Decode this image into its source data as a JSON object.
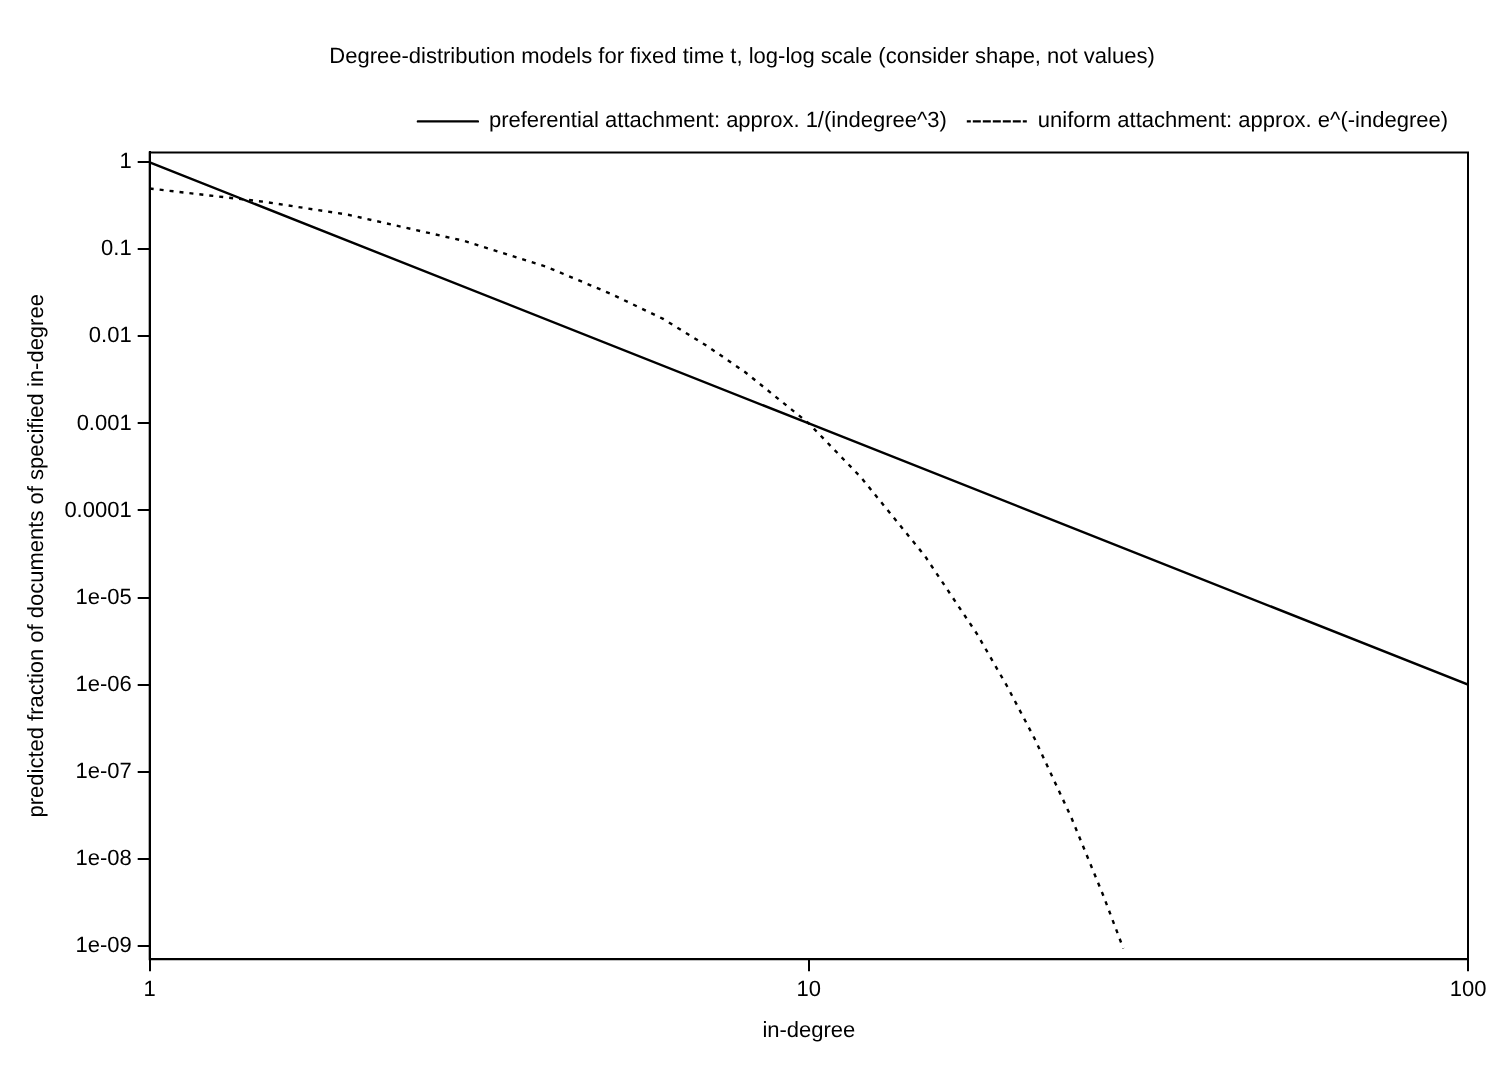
{
  "chart_data": {
    "type": "line",
    "title": "Degree-distribution models for fixed time t, log-log scale (consider shape, not values)",
    "xlabel": "in-degree",
    "ylabel": "predicted fraction of documents of specified in-degree",
    "log": "xy",
    "xlim": [
      1,
      100
    ],
    "xticks": [
      1,
      10,
      100
    ],
    "ylim": [
      7e-10,
      1.3
    ],
    "yticks": [
      1,
      0.1,
      0.01,
      0.001,
      0.0001,
      {
        "value": 1e-05,
        "label": "1e-05"
      },
      {
        "value": 1e-06,
        "label": "1e-06"
      },
      {
        "value": 1e-07,
        "label": "1e-07"
      },
      {
        "value": 1e-08,
        "label": "1e-08"
      },
      {
        "value": 1e-09,
        "label": "1e-09"
      }
    ],
    "grid": false,
    "legend": "top right",
    "marker": "none",
    "series": [
      {
        "name": "preferential attachment: approx. 1/(indegree^3)",
        "color": "#000000",
        "line_style": "solid",
        "x": [
          1,
          10,
          100
        ],
        "values": [
          1,
          0.001,
          1e-06
        ]
      },
      {
        "name": "uniform attachment: approx. e^(-indegree)",
        "color": "#000000",
        "line_style": "dotted",
        "x": [
          1,
          1.5,
          2,
          3,
          4,
          5,
          6,
          7,
          8,
          10,
          12,
          15,
          18,
          20,
          22,
          25,
          28,
          30
        ],
        "values": [
          0.5,
          0.35,
          0.25,
          0.125,
          0.063,
          0.031,
          0.016,
          0.0078,
          0.0039,
          0.001,
          0.00024,
          3e-05,
          3.8e-06,
          9.5e-07,
          2.4e-07,
          3e-08,
          3.7e-09,
          9.3e-10
        ]
      }
    ]
  }
}
